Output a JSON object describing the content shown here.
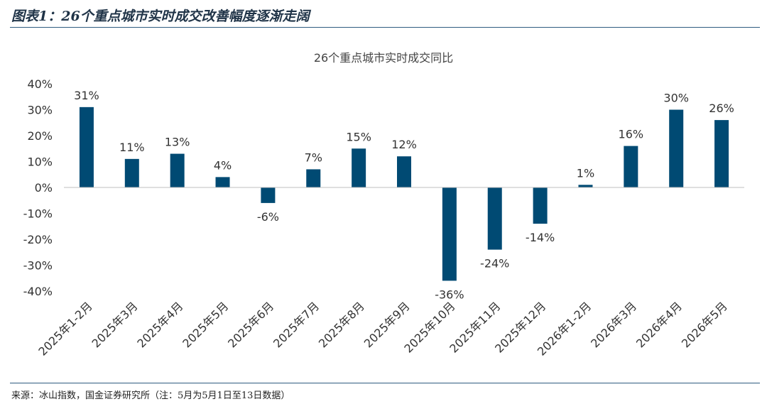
{
  "header": {
    "title": "图表1：26个重点城市实时成交改善幅度逐渐走阔"
  },
  "footer": {
    "source": "来源：冰山指数，国金证券研究所（注：5月为5月1日至13日数据）"
  },
  "colors": {
    "bar": "#004a73",
    "rule": "#2e5b7f",
    "title_text": "#1f3347",
    "axis_text": "#333333"
  },
  "chart_data": {
    "type": "bar",
    "title": "26个重点城市实时成交同比",
    "xlabel": "",
    "ylabel": "",
    "categories": [
      "2025年1-2月",
      "2025年3月",
      "2025年4月",
      "2025年5月",
      "2025年6月",
      "2025年7月",
      "2025年8月",
      "2025年9月",
      "2025年10月",
      "2025年11月",
      "2025年12月",
      "2026年1-2月",
      "2026年3月",
      "2026年4月",
      "2026年5月"
    ],
    "values": [
      31,
      11,
      13,
      4,
      -6,
      7,
      15,
      12,
      -36,
      -24,
      -14,
      1,
      16,
      30,
      26
    ],
    "data_labels": [
      "31%",
      "11%",
      "13%",
      "4%",
      "-6%",
      "7%",
      "15%",
      "12%",
      "-36%",
      "-24%",
      "-14%",
      "1%",
      "16%",
      "30%",
      "26%"
    ],
    "ylim": [
      -40,
      40
    ],
    "yticks": [
      40,
      30,
      20,
      10,
      0,
      -10,
      -20,
      -30,
      -40
    ],
    "ytick_labels": [
      "40%",
      "30%",
      "20%",
      "10%",
      "0%",
      "-10%",
      "-20%",
      "-30%",
      "-40%"
    ],
    "grid": false,
    "legend": "none"
  }
}
